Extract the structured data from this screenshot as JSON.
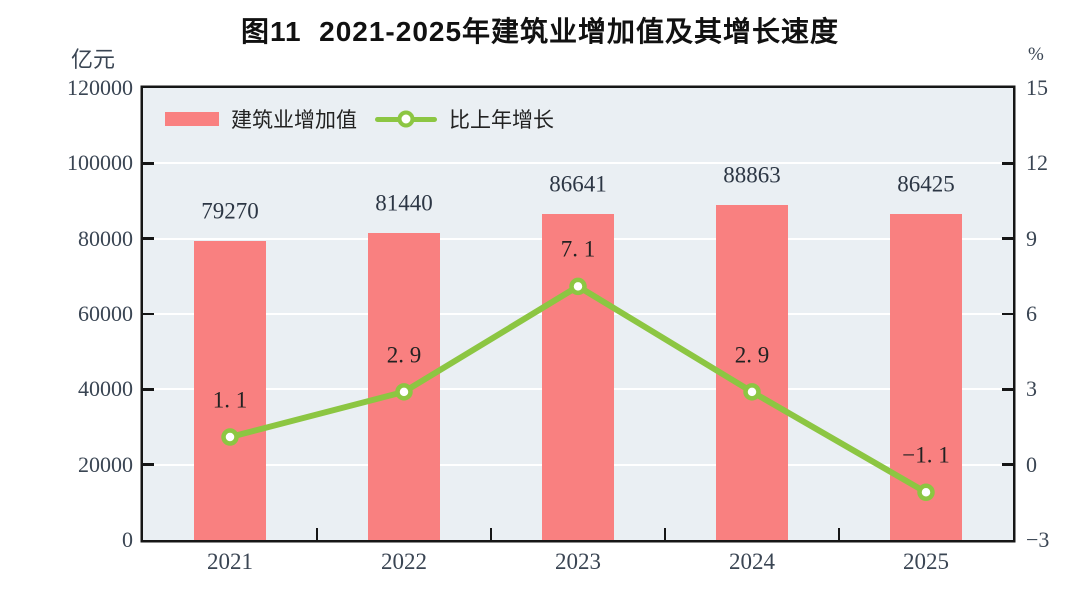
{
  "title": "图11  2021-2025年建筑业增加值及其增长速度",
  "left_axis_unit": "亿元",
  "right_axis_unit": "%",
  "legend": {
    "items": [
      {
        "type": "bar",
        "label": "建筑业增加值"
      },
      {
        "type": "line",
        "label": "比上年增长"
      }
    ]
  },
  "colors": {
    "bar": "#f98080",
    "line": "#8cc642",
    "marker_fill": "#ffffff",
    "plot_bg": "#eaeff3",
    "grid": "#ffffff",
    "border": "#161616",
    "axis_text": "#3a4553",
    "bar_label_text": "#2c3644",
    "line_label_text": "#222222"
  },
  "chart_data": {
    "type": "bar+line",
    "title": "图11  2021-2025年建筑业增加值及其增长速度",
    "categories": [
      "2021",
      "2022",
      "2023",
      "2024",
      "2025"
    ],
    "series": [
      {
        "name": "建筑业增加值",
        "type": "bar",
        "axis": "left",
        "values": [
          79270,
          81440,
          86641,
          88863,
          86425
        ],
        "labels": [
          "79270",
          "81440",
          "86641",
          "88863",
          "86425"
        ]
      },
      {
        "name": "比上年增长",
        "type": "line",
        "axis": "right",
        "values": [
          1.1,
          2.9,
          7.1,
          2.9,
          -1.1
        ],
        "labels": [
          "1. 1",
          "2. 9",
          "7. 1",
          "2. 9",
          "−1. 1"
        ]
      }
    ],
    "left_axis": {
      "unit": "亿元",
      "min": 0,
      "max": 120000,
      "step": 20000,
      "tick_labels": [
        "120000",
        "100000",
        "80000",
        "60000",
        "40000",
        "20000",
        "0"
      ]
    },
    "right_axis": {
      "unit": "%",
      "min": -3,
      "max": 15,
      "step": 3,
      "tick_labels": [
        "15",
        "12",
        "9",
        "6",
        "3",
        "0",
        "−3"
      ]
    },
    "grid": true,
    "legend_position": "top-left-inside"
  }
}
